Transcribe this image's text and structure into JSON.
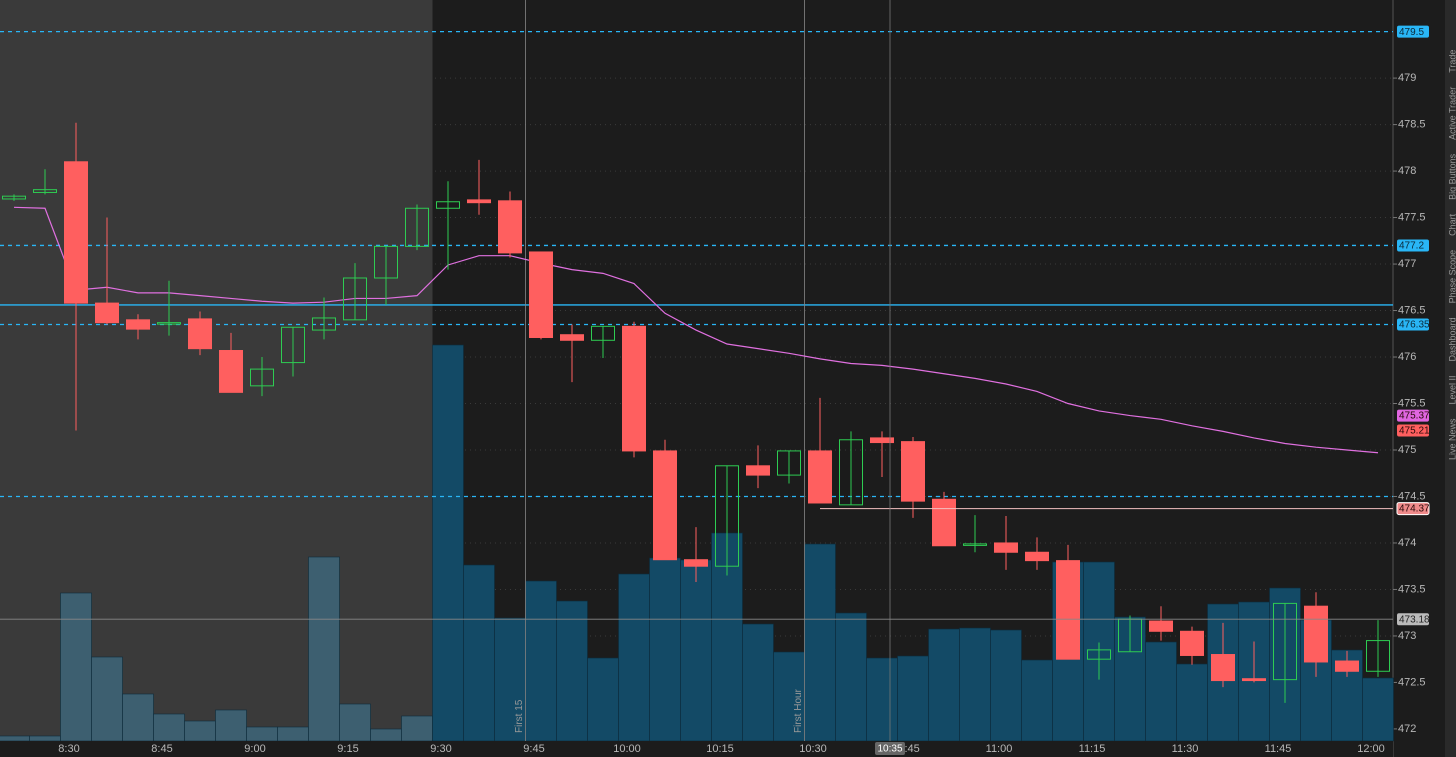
{
  "chart_data": {
    "type": "candlestick",
    "categories": [
      null,
      null,
      "8:30",
      null,
      null,
      "8:45",
      null,
      null,
      "9:00",
      null,
      null,
      "9:15",
      null,
      null,
      "9:30",
      null,
      null,
      "9:45",
      null,
      null,
      "10:00",
      null,
      null,
      "10:15",
      null,
      null,
      "10:30",
      null,
      null,
      "10:45",
      null,
      null,
      "11:00",
      null,
      null,
      "11:15",
      null,
      null,
      "11:30",
      null,
      null,
      "11:45",
      null,
      null,
      "12:00"
    ],
    "open": [
      477.7,
      477.77,
      478.1,
      476.58,
      476.4,
      476.36,
      476.41,
      476.07,
      475.69,
      475.94,
      476.29,
      476.4,
      476.85,
      477.19,
      477.6,
      477.69,
      477.68,
      477.13,
      476.24,
      476.18,
      476.33,
      474.99,
      473.82,
      473.75,
      474.83,
      474.73,
      474.99,
      474.41,
      475.13,
      475.09,
      474.47,
      473.98,
      474.0,
      473.9,
      473.81,
      472.75,
      472.83,
      473.16,
      473.05,
      472.8,
      472.54,
      472.53,
      473.32,
      472.73,
      472.62
    ],
    "high": [
      477.75,
      478.02,
      478.52,
      477.5,
      476.46,
      476.82,
      476.49,
      476.26,
      476.0,
      476.32,
      476.64,
      477.01,
      477.19,
      477.64,
      477.89,
      478.12,
      477.78,
      477.13,
      476.35,
      476.33,
      476.38,
      475.11,
      474.17,
      474.83,
      475.05,
      474.99,
      475.56,
      475.2,
      475.2,
      475.14,
      474.55,
      474.3,
      474.29,
      474.06,
      473.98,
      472.93,
      473.22,
      473.32,
      473.1,
      473.14,
      472.94,
      473.35,
      473.47,
      472.84,
      473.17
    ],
    "low": [
      477.68,
      477.75,
      475.21,
      476.35,
      476.19,
      476.23,
      476.02,
      475.62,
      475.58,
      475.79,
      476.19,
      476.4,
      476.56,
      477.15,
      476.94,
      477.53,
      477.07,
      476.19,
      475.73,
      475.99,
      474.92,
      473.82,
      473.58,
      473.65,
      474.59,
      474.64,
      474.43,
      474.41,
      474.71,
      474.27,
      473.97,
      473.9,
      473.71,
      473.71,
      472.75,
      472.53,
      472.83,
      472.95,
      472.69,
      472.45,
      472.5,
      472.28,
      472.56,
      472.56,
      472.56
    ],
    "close": [
      477.73,
      477.8,
      476.58,
      476.37,
      476.3,
      476.37,
      476.09,
      475.62,
      475.87,
      476.32,
      476.42,
      476.85,
      477.19,
      477.6,
      477.67,
      477.66,
      477.12,
      476.21,
      476.18,
      476.33,
      474.99,
      473.82,
      473.75,
      474.83,
      474.73,
      474.99,
      474.43,
      475.11,
      475.08,
      474.45,
      473.97,
      473.99,
      473.9,
      473.81,
      472.75,
      472.85,
      473.18,
      473.05,
      472.79,
      472.52,
      472.52,
      473.35,
      472.72,
      472.62,
      472.95
    ],
    "volume": [
      5,
      5,
      148,
      84,
      47,
      27,
      20,
      31,
      14,
      14,
      184,
      37,
      12,
      25,
      396,
      176,
      123,
      160,
      140,
      83,
      167,
      183,
      181,
      208,
      117,
      89,
      197,
      128,
      83,
      85,
      112,
      113,
      111,
      81,
      179,
      179,
      124,
      99,
      77,
      137,
      139,
      153,
      121,
      91,
      63
    ],
    "moving_average": [
      477.61,
      477.6,
      476.72,
      476.75,
      476.69,
      476.69,
      476.66,
      476.63,
      476.6,
      476.58,
      476.59,
      476.63,
      476.63,
      476.66,
      476.99,
      477.09,
      477.09,
      477.01,
      476.94,
      476.9,
      476.79,
      476.47,
      476.29,
      476.14,
      476.09,
      476.04,
      475.98,
      475.93,
      475.91,
      475.87,
      475.82,
      475.77,
      475.71,
      475.63,
      475.5,
      475.42,
      475.37,
      475.33,
      475.26,
      475.2,
      475.13,
      475.07,
      475.03,
      475.0,
      474.97
    ],
    "up_color": "#2ecc52",
    "down_color": "#ff5f5f",
    "volume_color": "#134a66",
    "premarket_volume_color": "#3d5f70",
    "ma_color": "#e070e0",
    "session_open": "9:30",
    "ylim": [
      471.87,
      479.84
    ],
    "yticks": [
      472,
      472.5,
      473,
      473.5,
      474,
      474.5,
      475,
      475.5,
      476,
      476.5,
      477,
      477.5,
      478,
      478.5,
      479
    ],
    "grid": true,
    "levels": [
      {
        "value": 479.5,
        "style": "dashed",
        "color": "#29b6f6",
        "tag": true
      },
      {
        "value": 477.2,
        "style": "dashed",
        "color": "#29b6f6",
        "tag": true
      },
      {
        "value": 476.56,
        "style": "solid",
        "color": "#29b6f6",
        "tag": false
      },
      {
        "value": 476.35,
        "style": "dashed",
        "color": "#29b6f6",
        "tag": true
      },
      {
        "value": 474.5,
        "style": "dashed",
        "color": "#29b6f6",
        "tag": false
      }
    ],
    "price_tags": [
      {
        "value": 475.37,
        "color": "#e066e0"
      },
      {
        "value": 475.21,
        "color": "#ff5f5f"
      },
      {
        "value": 474.37,
        "color": "#f08a8a",
        "line_from": "10:30"
      }
    ],
    "events": [
      {
        "label": "First 15",
        "at": "9:45"
      },
      {
        "label": "First Hour",
        "at": "10:30"
      }
    ],
    "cursor": {
      "time": "10:35",
      "price": 473.18
    }
  },
  "side_tabs": [
    "Live News",
    "Level II",
    "Dashboard",
    "Phase Scope",
    "Chart",
    "Big Buttons",
    "Active Trader",
    "Trade"
  ]
}
